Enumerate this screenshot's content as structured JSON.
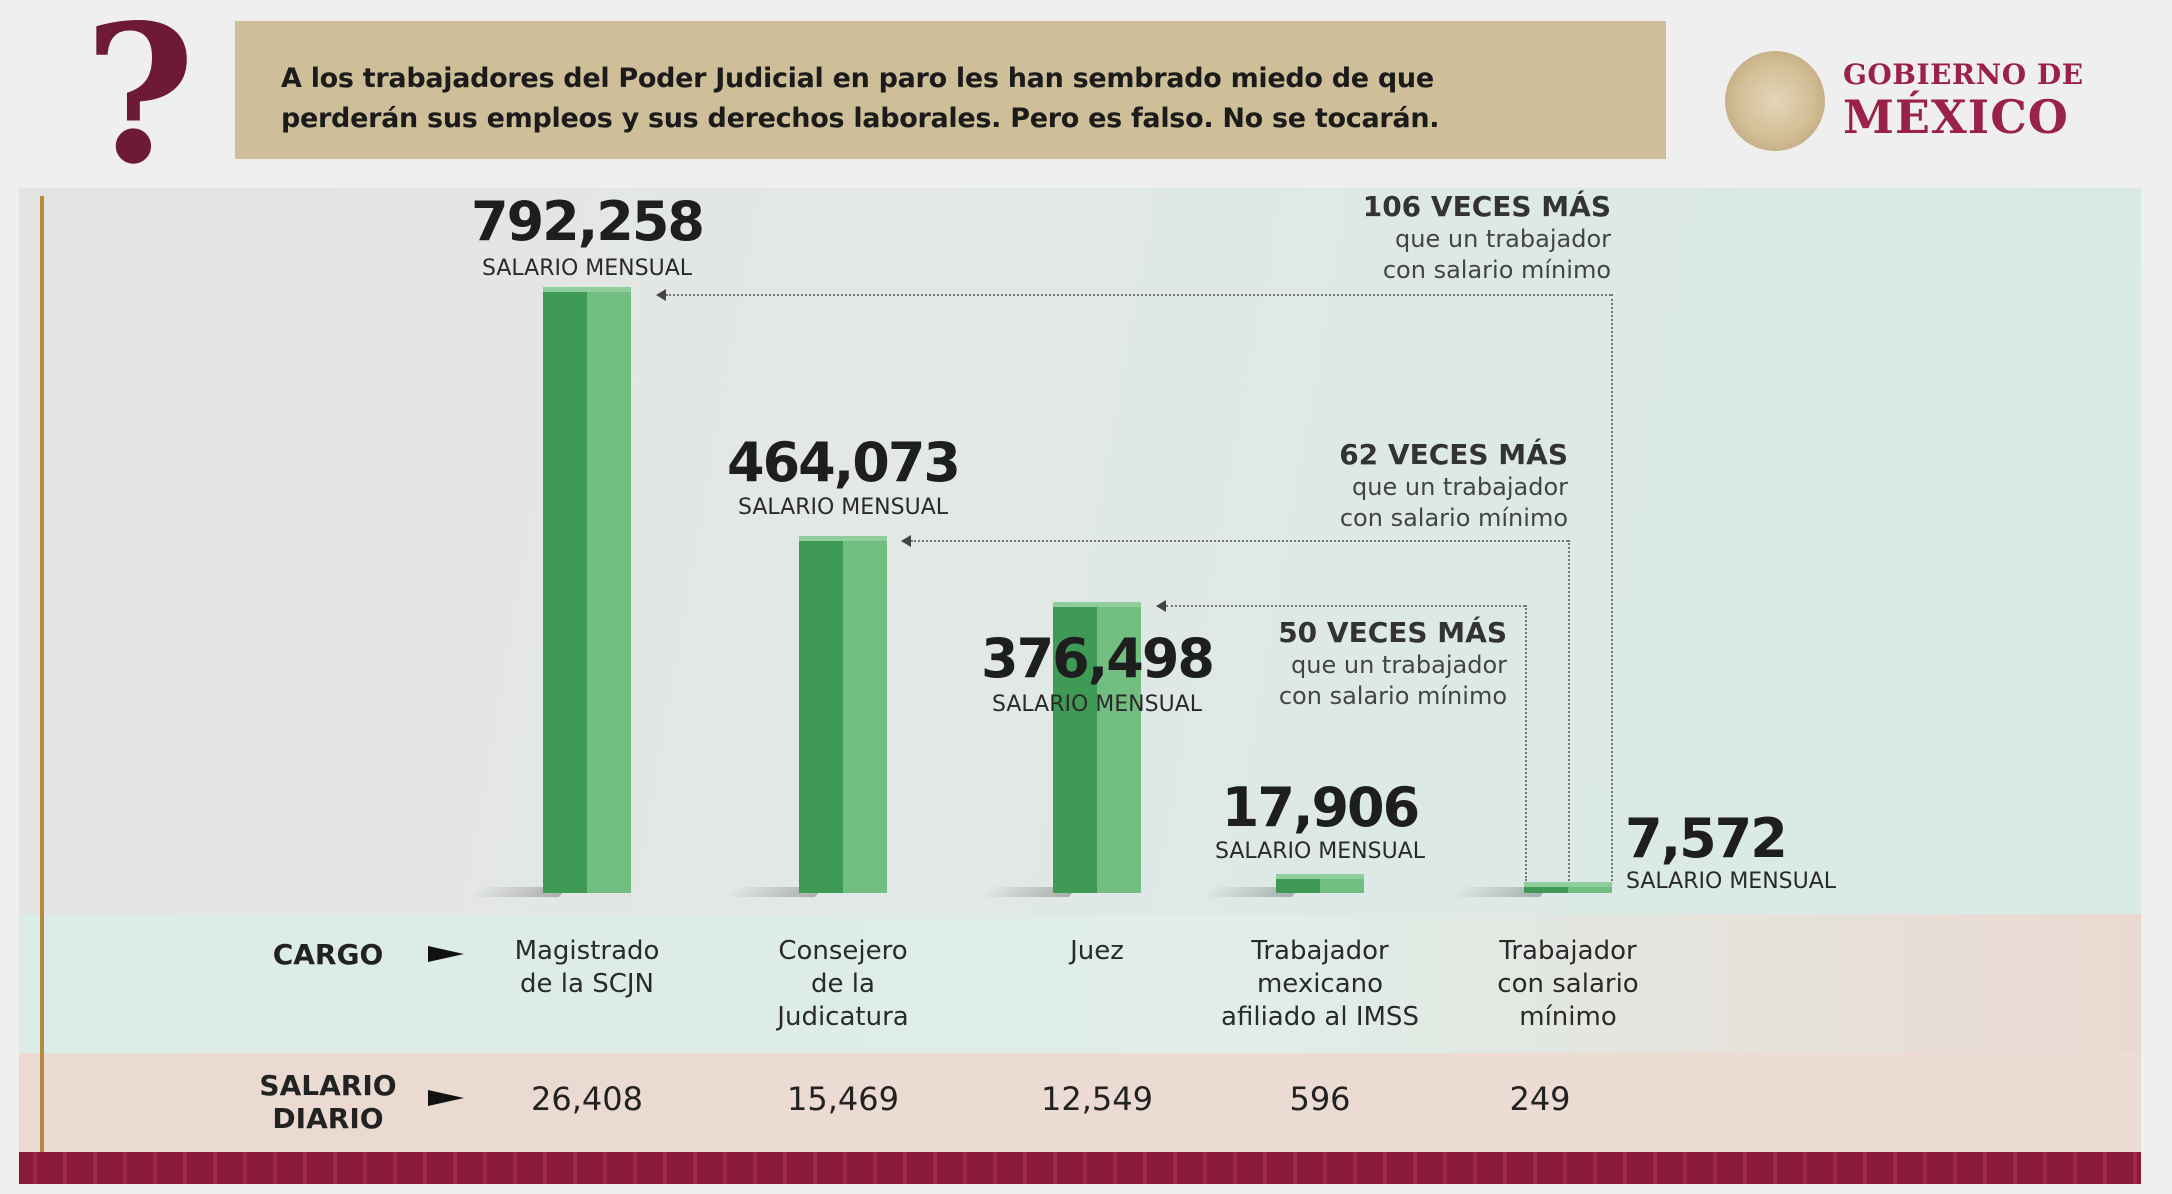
{
  "header": {
    "headline": "A los trabajadores del Poder Judicial en paro les han sembrado miedo de que perderán sus empleos y sus derechos laborales. Pero es falso. No se tocarán.",
    "headline_lines": [
      "A los trabajadores del Poder Judicial en paro les han sembrado miedo de que",
      "perderán sus empleos y sus derechos laborales. Pero es falso. No se tocarán."
    ],
    "logo_line1": "GOBIERNO DE",
    "logo_line2": "MÉXICO",
    "question_icon": "?",
    "colors": {
      "banner": "#cfbf98",
      "brand": "#9b2247",
      "bar": "#4caf60"
    }
  },
  "chart_data": {
    "type": "bar",
    "categories": [
      "Magistrado de la SCJN",
      "Consejero de la Judicatura",
      "Juez",
      "Trabajador mexicano afiliado al IMSS",
      "Trabajador con salario mínimo"
    ],
    "values": [
      792258,
      464073,
      376498,
      17906,
      7572
    ],
    "value_labels": [
      "792,258",
      "464,073",
      "376,498",
      "17,906",
      "7,572"
    ],
    "value_sublabel": "SALARIO MENSUAL",
    "annotations": [
      {
        "bold": "106 VECES MÁS",
        "line1": "que un trabajador",
        "line2": "con salario mínimo",
        "target": "Magistrado de la SCJN"
      },
      {
        "bold": "62 VECES MÁS",
        "line1": "que un trabajador",
        "line2": "con salario mínimo",
        "target": "Consejero de la Judicatura"
      },
      {
        "bold": "50 VECES MÁS",
        "line1": "que un trabajador",
        "line2": "con salario mínimo",
        "target": "Juez"
      }
    ],
    "table": {
      "cargo_label": "CARGO",
      "cargo": [
        [
          "Magistrado",
          "de la SCJN"
        ],
        [
          "Consejero",
          "de la",
          "Judicatura"
        ],
        [
          "Juez"
        ],
        [
          "Trabajador",
          "mexicano",
          "afiliado al IMSS"
        ],
        [
          "Trabajador",
          "con salario",
          "mínimo"
        ]
      ],
      "diario_label": [
        "SALARIO",
        "DIARIO"
      ],
      "diario": [
        "26,408",
        "15,469",
        "12,549",
        "596",
        "249"
      ]
    }
  }
}
